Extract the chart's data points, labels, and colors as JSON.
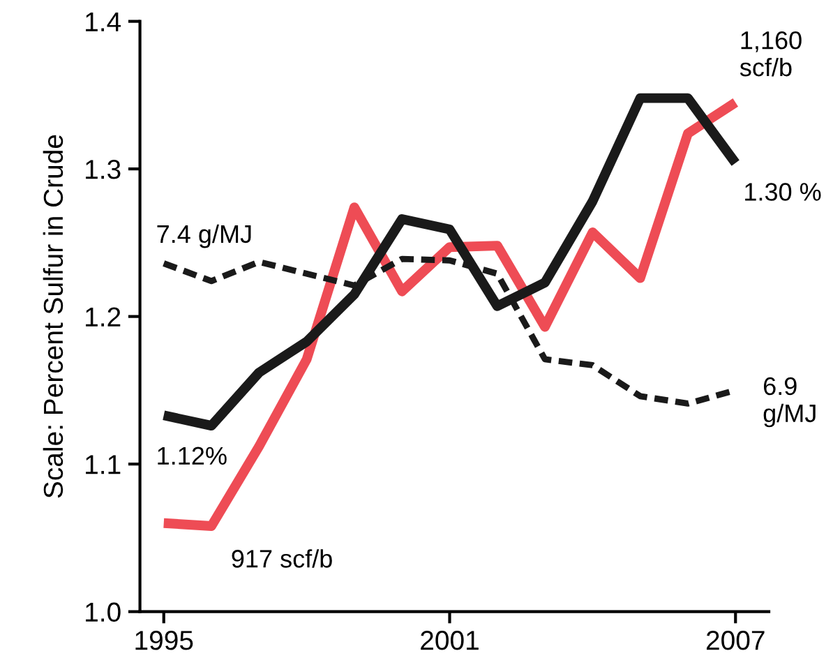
{
  "chart_data": {
    "type": "line",
    "ylabel": "Scale: Percent Sulfur in Crude",
    "x": [
      1995,
      1996,
      1997,
      1998,
      1999,
      2000,
      2001,
      2002,
      2003,
      2004,
      2005,
      2006,
      2007
    ],
    "series": [
      {
        "color": "#ee4c55",
        "line_style": "solid",
        "values": [
          1.06,
          1.058,
          1.112,
          1.171,
          1.274,
          1.217,
          1.247,
          1.248,
          1.193,
          1.257,
          1.226,
          1.324,
          1.345
        ]
      },
      {
        "color": "#1a1a1a",
        "line_style": "solid",
        "values": [
          1.133,
          1.126,
          1.162,
          1.183,
          1.215,
          1.266,
          1.259,
          1.207,
          1.223,
          1.278,
          1.348,
          1.348,
          1.304
        ]
      },
      {
        "color": "#1a1a1a",
        "line_style": "dashed",
        "values": [
          1.236,
          1.224,
          1.237,
          1.229,
          1.221,
          1.239,
          1.238,
          1.229,
          1.171,
          1.167,
          1.146,
          1.141,
          1.15
        ]
      }
    ],
    "xlim": [
      1994.5,
      2007.7
    ],
    "xticks": [
      1995,
      2001,
      2007
    ],
    "ylim": [
      1.0,
      1.4
    ],
    "yticks": [
      {
        "value": 1.0,
        "label": "1.0"
      },
      1.1,
      1.2,
      1.3,
      1.4
    ],
    "grid": false,
    "legend": false,
    "annotations": [
      {
        "text": "1.12%",
        "x": 1995,
        "y": 1.133
      },
      {
        "text": "917 scf/b",
        "x": 1996,
        "y": 1.058
      },
      {
        "text": "7.4 g/MJ",
        "x": 1995,
        "y": 1.236
      },
      {
        "text": "6.9\ng/MJ",
        "x": 2007,
        "y": 1.15
      },
      {
        "text": "1,160\nscf/b",
        "x": 2007,
        "y": 1.345
      },
      {
        "text": "1.30 %",
        "x": 2007,
        "y": 1.304
      }
    ]
  }
}
